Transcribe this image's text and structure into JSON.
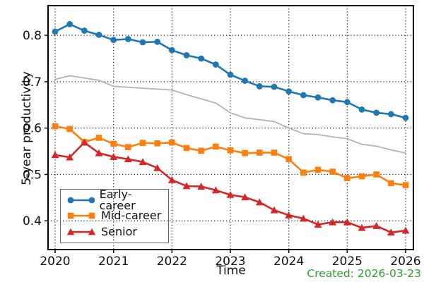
{
  "chart_data": {
    "type": "line",
    "title": "",
    "xlabel": "Time",
    "ylabel": "5-year productivity",
    "x_ticks": [
      2020,
      2021,
      2022,
      2023,
      2024,
      2025,
      2026
    ],
    "y_ticks": [
      0.4,
      0.5,
      0.6,
      0.7,
      0.8
    ],
    "xlim": [
      2019.879,
      2026.133
    ],
    "ylim": [
      0.338,
      0.864
    ],
    "grid": "dotted, both axes",
    "legend_position": "lower left",
    "x": [
      2020,
      2020.25,
      2020.5,
      2020.75,
      2021,
      2021.25,
      2021.5,
      2021.75,
      2022,
      2022.25,
      2022.5,
      2022.75,
      2023,
      2023.25,
      2023.5,
      2023.75,
      2024,
      2024.25,
      2024.5,
      2024.75,
      2025,
      2025.25,
      2025.5,
      2025.75,
      2026
    ],
    "series": [
      {
        "name": "Early-career",
        "color": "#1f77b4",
        "marker": "circle",
        "in_legend": true,
        "values": [
          0.808,
          0.824,
          0.81,
          0.801,
          0.79,
          0.792,
          0.785,
          0.786,
          0.768,
          0.757,
          0.75,
          0.737,
          0.715,
          0.702,
          0.69,
          0.689,
          0.679,
          0.671,
          0.666,
          0.66,
          0.656,
          0.64,
          0.633,
          0.63,
          0.622
        ]
      },
      {
        "name": "Mid-career",
        "color": "#ff7f0e",
        "marker": "square",
        "in_legend": true,
        "values": [
          0.604,
          0.598,
          0.57,
          0.579,
          0.566,
          0.559,
          0.568,
          0.567,
          0.569,
          0.557,
          0.551,
          0.56,
          0.552,
          0.546,
          0.547,
          0.547,
          0.533,
          0.504,
          0.51,
          0.506,
          0.492,
          0.496,
          0.5,
          0.481,
          0.477
        ]
      },
      {
        "name": "Senior",
        "color": "#d62728",
        "marker": "triangle",
        "in_legend": true,
        "values": [
          0.542,
          0.537,
          0.569,
          0.546,
          0.538,
          0.533,
          0.527,
          0.514,
          0.488,
          0.475,
          0.474,
          0.466,
          0.456,
          0.451,
          0.44,
          0.423,
          0.412,
          0.405,
          0.392,
          0.397,
          0.397,
          0.385,
          0.389,
          0.375,
          0.379
        ]
      },
      {
        "name": "",
        "color": "#b3b3b3",
        "marker": "none",
        "in_legend": false,
        "values": [
          0.705,
          0.713,
          0.708,
          0.703,
          0.69,
          0.688,
          0.686,
          0.684,
          0.682,
          0.672,
          0.663,
          0.654,
          0.633,
          0.622,
          0.618,
          0.614,
          0.6,
          0.588,
          0.586,
          0.581,
          0.577,
          0.565,
          0.561,
          0.553,
          0.546
        ]
      }
    ]
  },
  "footer": {
    "created_label": "Created: 2026-03-23",
    "color": "#2ca02c"
  }
}
